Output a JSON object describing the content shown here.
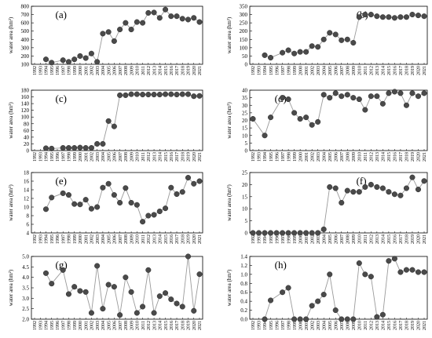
{
  "figure": {
    "xticks": [
      "1992",
      "1993",
      "1994",
      "1995",
      "1996",
      "1997",
      "1998",
      "1999",
      "2000",
      "2001",
      "2002",
      "2003",
      "2004",
      "2005",
      "2006",
      "2007",
      "2008",
      "2009",
      "2010",
      "2011",
      "2012",
      "2013",
      "2014",
      "2015",
      "2016",
      "2017",
      "2018",
      "2019",
      "2020",
      "2021"
    ],
    "colors": {
      "line": "#9a9a9a",
      "marker": "#4a4a4a",
      "axis": "#000000"
    }
  },
  "chart_data": [
    {
      "panel": "(a)",
      "type": "line",
      "ylabel": "water area (hm²)",
      "ylim": [
        100,
        800
      ],
      "yticks": [
        100,
        200,
        300,
        400,
        500,
        600,
        700,
        800
      ],
      "x": [
        1992,
        1993,
        1994,
        1995,
        1996,
        1997,
        1998,
        1999,
        2000,
        2001,
        2002,
        2003,
        2004,
        2005,
        2006,
        2007,
        2008,
        2009,
        2010,
        2011,
        2012,
        2013,
        2014,
        2015,
        2016,
        2017,
        2018,
        2019,
        2020,
        2021
      ],
      "values": [
        null,
        null,
        160,
        120,
        null,
        150,
        130,
        160,
        200,
        175,
        230,
        130,
        470,
        490,
        380,
        520,
        600,
        520,
        610,
        600,
        720,
        725,
        660,
        760,
        680,
        680,
        650,
        640,
        660,
        610
      ]
    },
    {
      "panel": "(b)",
      "type": "line",
      "ylabel": "water area (hm²)",
      "ylim": [
        0,
        350
      ],
      "yticks": [
        0,
        50,
        100,
        150,
        200,
        250,
        300,
        350
      ],
      "x": [
        1992,
        1993,
        1994,
        1995,
        1996,
        1997,
        1998,
        1999,
        2000,
        2001,
        2002,
        2003,
        2004,
        2005,
        2006,
        2007,
        2008,
        2009,
        2010,
        2011,
        2012,
        2013,
        2014,
        2015,
        2016,
        2017,
        2018,
        2019,
        2020,
        2021
      ],
      "values": [
        null,
        null,
        55,
        40,
        null,
        70,
        85,
        65,
        75,
        75,
        110,
        105,
        150,
        190,
        180,
        145,
        150,
        130,
        285,
        300,
        300,
        290,
        285,
        285,
        280,
        285,
        285,
        300,
        295,
        290
      ]
    },
    {
      "panel": "(c)",
      "type": "line",
      "ylabel": "water area (hm²)",
      "ylim": [
        0,
        180
      ],
      "yticks": [
        0,
        20,
        40,
        60,
        80,
        100,
        120,
        140,
        160,
        180
      ],
      "x": [
        1992,
        1993,
        1994,
        1995,
        1996,
        1997,
        1998,
        1999,
        2000,
        2001,
        2002,
        2003,
        2004,
        2005,
        2006,
        2007,
        2008,
        2009,
        2010,
        2011,
        2012,
        2013,
        2014,
        2015,
        2016,
        2017,
        2018,
        2019,
        2020,
        2021
      ],
      "values": [
        null,
        null,
        7,
        6,
        null,
        8,
        8,
        8,
        9,
        8,
        8,
        20,
        20,
        88,
        72,
        165,
        165,
        168,
        168,
        167,
        167,
        167,
        167,
        168,
        168,
        167,
        168,
        168,
        162,
        163
      ]
    },
    {
      "panel": "(d)",
      "type": "line",
      "ylabel": "water area (hm²)",
      "ylim": [
        0,
        40
      ],
      "yticks": [
        0,
        5,
        10,
        15,
        20,
        25,
        30,
        35,
        40
      ],
      "x": [
        1992,
        1993,
        1994,
        1995,
        1996,
        1997,
        1998,
        1999,
        2000,
        2001,
        2002,
        2003,
        2004,
        2005,
        2006,
        2007,
        2008,
        2009,
        2010,
        2011,
        2012,
        2013,
        2014,
        2015,
        2016,
        2017,
        2018,
        2019,
        2020,
        2021
      ],
      "values": [
        21,
        null,
        10,
        22,
        null,
        35,
        34,
        25,
        21,
        22,
        17,
        19,
        37,
        35,
        38,
        36,
        37,
        35,
        34,
        27,
        36,
        36,
        31,
        38,
        39,
        38,
        30,
        38,
        36,
        38
      ]
    },
    {
      "panel": "(e)",
      "type": "line",
      "ylabel": "water area (hm²)",
      "ylim": [
        4,
        18
      ],
      "yticks": [
        4,
        6,
        8,
        10,
        12,
        14,
        16,
        18
      ],
      "x": [
        1992,
        1993,
        1994,
        1995,
        1996,
        1997,
        1998,
        1999,
        2000,
        2001,
        2002,
        2003,
        2004,
        2005,
        2006,
        2007,
        2008,
        2009,
        2010,
        2011,
        2012,
        2013,
        2014,
        2015,
        2016,
        2017,
        2018,
        2019,
        2020,
        2021
      ],
      "values": [
        null,
        null,
        9.5,
        12.2,
        null,
        13.2,
        12.8,
        10.7,
        10.6,
        11.7,
        9.6,
        10.0,
        14.5,
        15.4,
        12.8,
        11.0,
        14.4,
        11.0,
        10.5,
        6.6,
        8.0,
        8.2,
        9.0,
        9.7,
        14.5,
        13.0,
        13.5,
        16.8,
        15.4,
        16.0
      ]
    },
    {
      "panel": "(f)",
      "type": "line",
      "ylabel": "water area (hm²)",
      "ylim": [
        0,
        25
      ],
      "yticks": [
        0,
        5,
        10,
        15,
        20,
        25
      ],
      "x": [
        1992,
        1993,
        1994,
        1995,
        1996,
        1997,
        1998,
        1999,
        2000,
        2001,
        2002,
        2003,
        2004,
        2005,
        2006,
        2007,
        2008,
        2009,
        2010,
        2011,
        2012,
        2013,
        2014,
        2015,
        2016,
        2017,
        2018,
        2019,
        2020,
        2021
      ],
      "values": [
        0,
        0,
        0,
        0,
        0,
        0,
        0,
        0,
        0,
        0,
        0,
        0,
        1.5,
        19,
        18.5,
        12.5,
        17.5,
        17,
        17,
        19,
        20,
        19,
        18.5,
        17,
        16,
        15.5,
        18.5,
        23,
        18,
        21.5
      ]
    },
    {
      "panel": "(g)",
      "type": "line",
      "ylabel": "water area (hm²)",
      "ylim": [
        2.0,
        5.0
      ],
      "yticks": [
        2.0,
        2.5,
        3.0,
        3.5,
        4.0,
        4.5,
        5.0
      ],
      "x": [
        1992,
        1993,
        1994,
        1995,
        1996,
        1997,
        1998,
        1999,
        2000,
        2001,
        2002,
        2003,
        2004,
        2005,
        2006,
        2007,
        2008,
        2009,
        2010,
        2011,
        2012,
        2013,
        2014,
        2015,
        2016,
        2017,
        2018,
        2019,
        2020,
        2021
      ],
      "values": [
        null,
        null,
        4.2,
        3.7,
        null,
        4.35,
        3.2,
        3.55,
        3.35,
        3.3,
        2.3,
        4.55,
        2.5,
        3.65,
        3.55,
        2.2,
        4.0,
        3.3,
        2.3,
        2.6,
        4.35,
        2.3,
        3.1,
        3.25,
        2.95,
        2.75,
        2.6,
        5.0,
        2.4,
        4.15
      ]
    },
    {
      "panel": "(h)",
      "type": "line",
      "ylabel": "water area (hm²)",
      "ylim": [
        0,
        1.4
      ],
      "yticks": [
        0,
        0.2,
        0.4,
        0.6,
        0.8,
        1.0,
        1.2,
        1.4
      ],
      "x": [
        1992,
        1993,
        1994,
        1995,
        1996,
        1997,
        1998,
        1999,
        2000,
        2001,
        2002,
        2003,
        2004,
        2005,
        2006,
        2007,
        2008,
        2009,
        2010,
        2011,
        2012,
        2013,
        2014,
        2015,
        2016,
        2017,
        2018,
        2019,
        2020,
        2021
      ],
      "values": [
        null,
        null,
        0,
        0.42,
        null,
        0.6,
        0.7,
        0,
        0,
        0,
        0.3,
        0.4,
        0.55,
        1.0,
        0.2,
        0,
        0,
        0,
        1.25,
        1.0,
        0.95,
        0.05,
        0.1,
        1.3,
        1.35,
        1.05,
        1.1,
        1.1,
        1.05,
        1.05
      ]
    }
  ]
}
